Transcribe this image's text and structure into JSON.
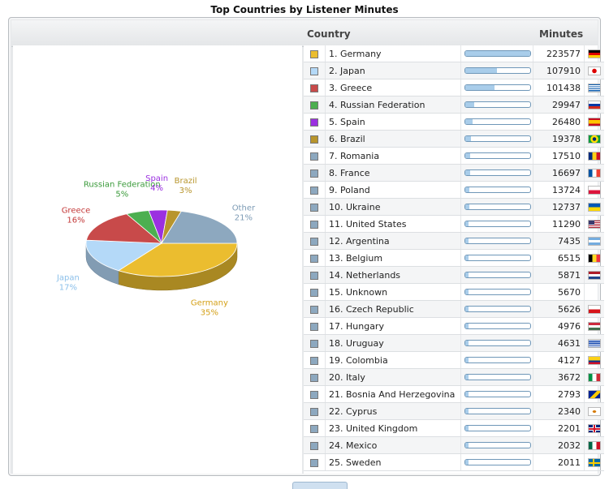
{
  "title": "Top Countries by Listener Minutes",
  "columns": {
    "country": "Country",
    "minutes": "Minutes"
  },
  "max_minutes": 223577,
  "rows": [
    {
      "rank_name": "1. Germany",
      "minutes": "223577",
      "value": 223577,
      "color": "#ebbd2f",
      "flag": "germany-flag-icon"
    },
    {
      "rank_name": "2. Japan",
      "minutes": "107910",
      "value": 107910,
      "color": "#b4d9f8",
      "flag": "japan-flag-icon"
    },
    {
      "rank_name": "3. Greece",
      "minutes": "101438",
      "value": 101438,
      "color": "#c84a4a",
      "flag": "greece-flag-icon"
    },
    {
      "rank_name": "4. Russian Federation",
      "minutes": "29947",
      "value": 29947,
      "color": "#4caf50",
      "flag": "russia-flag-icon"
    },
    {
      "rank_name": "5. Spain",
      "minutes": "26480",
      "value": 26480,
      "color": "#9b30e0",
      "flag": "spain-flag-icon"
    },
    {
      "rank_name": "6. Brazil",
      "minutes": "19378",
      "value": 19378,
      "color": "#b8952c",
      "flag": "brazil-flag-icon"
    },
    {
      "rank_name": "7. Romania",
      "minutes": "17510",
      "value": 17510,
      "color": "#8da8bf",
      "flag": "romania-flag-icon"
    },
    {
      "rank_name": "8. France",
      "minutes": "16697",
      "value": 16697,
      "color": "#8da8bf",
      "flag": "france-flag-icon"
    },
    {
      "rank_name": "9. Poland",
      "minutes": "13724",
      "value": 13724,
      "color": "#8da8bf",
      "flag": "poland-flag-icon"
    },
    {
      "rank_name": "10. Ukraine",
      "minutes": "12737",
      "value": 12737,
      "color": "#8da8bf",
      "flag": "ukraine-flag-icon"
    },
    {
      "rank_name": "11. United States",
      "minutes": "11290",
      "value": 11290,
      "color": "#8da8bf",
      "flag": "usa-flag-icon"
    },
    {
      "rank_name": "12. Argentina",
      "minutes": "7435",
      "value": 7435,
      "color": "#8da8bf",
      "flag": "argentina-flag-icon"
    },
    {
      "rank_name": "13. Belgium",
      "minutes": "6515",
      "value": 6515,
      "color": "#8da8bf",
      "flag": "belgium-flag-icon"
    },
    {
      "rank_name": "14. Netherlands",
      "minutes": "5871",
      "value": 5871,
      "color": "#8da8bf",
      "flag": "netherlands-flag-icon"
    },
    {
      "rank_name": "15. Unknown",
      "minutes": "5670",
      "value": 5670,
      "color": "#8da8bf",
      "flag": ""
    },
    {
      "rank_name": "16. Czech Republic",
      "minutes": "5626",
      "value": 5626,
      "color": "#8da8bf",
      "flag": "czech-flag-icon"
    },
    {
      "rank_name": "17. Hungary",
      "minutes": "4976",
      "value": 4976,
      "color": "#8da8bf",
      "flag": "hungary-flag-icon"
    },
    {
      "rank_name": "18. Uruguay",
      "minutes": "4631",
      "value": 4631,
      "color": "#8da8bf",
      "flag": "uruguay-flag-icon"
    },
    {
      "rank_name": "19. Colombia",
      "minutes": "4127",
      "value": 4127,
      "color": "#8da8bf",
      "flag": "colombia-flag-icon"
    },
    {
      "rank_name": "20. Italy",
      "minutes": "3672",
      "value": 3672,
      "color": "#8da8bf",
      "flag": "italy-flag-icon"
    },
    {
      "rank_name": "21. Bosnia And Herzegovina",
      "minutes": "2793",
      "value": 2793,
      "color": "#8da8bf",
      "flag": "bosnia-flag-icon"
    },
    {
      "rank_name": "22. Cyprus",
      "minutes": "2340",
      "value": 2340,
      "color": "#8da8bf",
      "flag": "cyprus-flag-icon"
    },
    {
      "rank_name": "23. United Kingdom",
      "minutes": "2201",
      "value": 2201,
      "color": "#8da8bf",
      "flag": "uk-flag-icon"
    },
    {
      "rank_name": "24. Mexico",
      "minutes": "2032",
      "value": 2032,
      "color": "#8da8bf",
      "flag": "mexico-flag-icon"
    },
    {
      "rank_name": "25. Sweden",
      "minutes": "2011",
      "value": 2011,
      "color": "#8da8bf",
      "flag": "sweden-flag-icon"
    }
  ],
  "chart_data": {
    "type": "pie",
    "title": "Top Countries by Listener Minutes",
    "slices": [
      {
        "label": "Germany",
        "pct_label": "35%",
        "value": 35,
        "color": "#ebbd2f",
        "label_color": "#d4a017"
      },
      {
        "label": "Japan",
        "pct_label": "17%",
        "value": 17,
        "color": "#b4d9f8",
        "label_color": "#8cc0ea"
      },
      {
        "label": "Greece",
        "pct_label": "16%",
        "value": 16,
        "color": "#c84a4a",
        "label_color": "#c43a3a"
      },
      {
        "label": "Russian Federation",
        "pct_label": "5%",
        "value": 5,
        "color": "#4caf50",
        "label_color": "#3a9a3a"
      },
      {
        "label": "Spain",
        "pct_label": "4%",
        "value": 4,
        "color": "#9b30e0",
        "label_color": "#9b30e0"
      },
      {
        "label": "Brazil",
        "pct_label": "3%",
        "value": 3,
        "color": "#b8952c",
        "label_color": "#b8952c"
      },
      {
        "label": "Other",
        "pct_label": "21%",
        "value": 21,
        "color": "#8da8bf",
        "label_color": "#7d9bb5"
      }
    ]
  }
}
